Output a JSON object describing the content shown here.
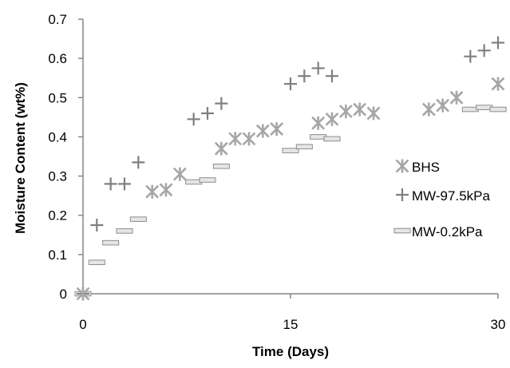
{
  "chart_data": {
    "type": "scatter",
    "title": "",
    "xlabel": "Time (Days)",
    "ylabel": "Moisture Content (wt%)",
    "xlim": [
      0,
      30
    ],
    "ylim": [
      0,
      0.7
    ],
    "xticks": [
      0,
      15,
      30
    ],
    "yticks": [
      0,
      0.1,
      0.2,
      0.3,
      0.4,
      0.5,
      0.6,
      0.7
    ],
    "xtick_labels": [
      "0",
      "15",
      "30"
    ],
    "ytick_labels": [
      "0",
      "0.1",
      "0.2",
      "0.3",
      "0.4",
      "0.5",
      "0.6",
      "0.7"
    ],
    "grid": false,
    "legend_position": "right",
    "series": [
      {
        "name": "BHS",
        "marker": "asterisk",
        "color": "#a6a6a6",
        "x": [
          0,
          5,
          6,
          7,
          10,
          11,
          12,
          13,
          14,
          17,
          18,
          19,
          20,
          21,
          25,
          26,
          27,
          30
        ],
        "y": [
          0,
          0.26,
          0.265,
          0.305,
          0.37,
          0.395,
          0.395,
          0.415,
          0.42,
          0.435,
          0.445,
          0.465,
          0.47,
          0.46,
          0.47,
          0.48,
          0.5,
          0.535
        ]
      },
      {
        "name": "MW-97.5kPa",
        "marker": "plus",
        "color": "#7f7f7f",
        "x": [
          0,
          1,
          2,
          3,
          4,
          8,
          9,
          10,
          15,
          16,
          17,
          18,
          28,
          29,
          30
        ],
        "y": [
          0,
          0.175,
          0.28,
          0.28,
          0.335,
          0.445,
          0.46,
          0.485,
          0.535,
          0.555,
          0.575,
          0.555,
          0.605,
          0.62,
          0.64
        ]
      },
      {
        "name": "MW-0.2kPa",
        "marker": "dash",
        "color": "#bfbfbf",
        "x": [
          0,
          1,
          2,
          3,
          4,
          8,
          9,
          10,
          15,
          16,
          17,
          18,
          28,
          29,
          30
        ],
        "y": [
          0,
          0.08,
          0.13,
          0.16,
          0.19,
          0.285,
          0.29,
          0.325,
          0.365,
          0.375,
          0.4,
          0.395,
          0.47,
          0.475,
          0.47
        ]
      }
    ]
  }
}
